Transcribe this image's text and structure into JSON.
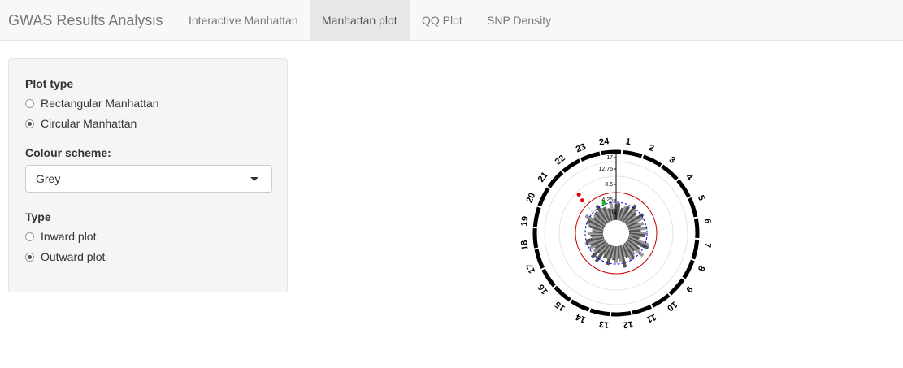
{
  "app": {
    "title": "GWAS Results Analysis"
  },
  "tabs": [
    {
      "label": "Interactive Manhattan"
    },
    {
      "label": "Manhattan plot",
      "active": true
    },
    {
      "label": "QQ Plot"
    },
    {
      "label": "SNP Density"
    }
  ],
  "sidebar": {
    "plot_type_label": "Plot type",
    "plot_type_options": [
      {
        "label": "Rectangular Manhattan",
        "selected": false
      },
      {
        "label": "Circular Manhattan",
        "selected": true
      }
    ],
    "colour_label": "Colour scheme:",
    "colour_value": "Grey",
    "type_label": "Type",
    "type_options": [
      {
        "label": "Inward plot",
        "selected": false
      },
      {
        "label": "Outward plot",
        "selected": true
      }
    ]
  },
  "plot": {
    "chromosomes": [
      "1",
      "2",
      "3",
      "4",
      "5",
      "6",
      "7",
      "8",
      "9",
      "10",
      "11",
      "12",
      "13",
      "14",
      "15",
      "16",
      "17",
      "18",
      "19",
      "20",
      "21",
      "22",
      "23",
      "24"
    ],
    "radial_ticks": [
      "17",
      "12.75",
      "8.5",
      "4.25",
      "0"
    ],
    "threshold_color": "#cc0000",
    "suggestive_color": "#0000cc",
    "highlight_colors": [
      "#dd0000",
      "#22bb22"
    ]
  }
}
